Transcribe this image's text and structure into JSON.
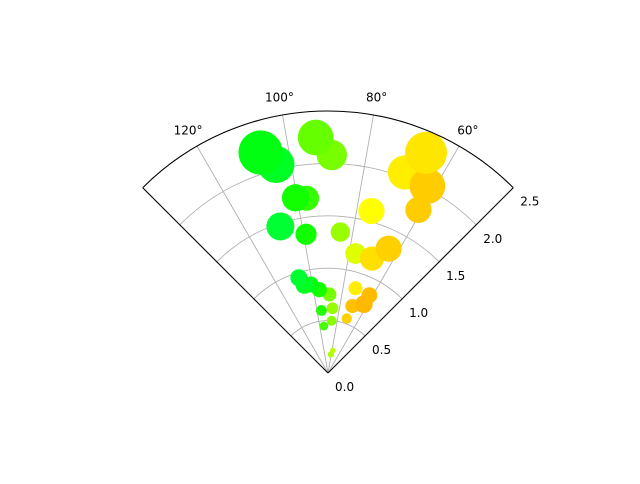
{
  "chart_data": {
    "type": "scatter",
    "projection": "polar",
    "title": "",
    "theta_unit": "degrees",
    "theta_range": [
      45,
      135
    ],
    "r_range": [
      0,
      2.5
    ],
    "grid": true,
    "legend": "none",
    "theta_ticks": [
      {
        "value": 60,
        "label": "60°"
      },
      {
        "value": 80,
        "label": "80°"
      },
      {
        "value": 100,
        "label": "100°"
      },
      {
        "value": 120,
        "label": "120°"
      }
    ],
    "r_ticks": [
      {
        "value": 0.0,
        "label": "0.0"
      },
      {
        "value": 0.5,
        "label": "0.5"
      },
      {
        "value": 1.0,
        "label": "1.0"
      },
      {
        "value": 1.5,
        "label": "1.5"
      },
      {
        "value": 2.0,
        "label": "2.0"
      },
      {
        "value": 2.5,
        "label": "2.5"
      }
    ],
    "point_encoding": {
      "theta": "angle in degrees",
      "r": "radius",
      "size": "marker area (relative)",
      "color": "hex fill"
    },
    "points": [
      {
        "theta": 81.0,
        "r": 0.18,
        "size": 20,
        "color": "#aaff00"
      },
      {
        "theta": 78.0,
        "r": 0.22,
        "size": 15,
        "color": "#b8ff00"
      },
      {
        "theta": 95.0,
        "r": 0.45,
        "size": 40,
        "color": "#44ff00"
      },
      {
        "theta": 86.0,
        "r": 0.5,
        "size": 50,
        "color": "#88ff00"
      },
      {
        "theta": 86.0,
        "r": 0.62,
        "size": 70,
        "color": "#99ff00"
      },
      {
        "theta": 96.0,
        "r": 0.6,
        "size": 60,
        "color": "#22ff00"
      },
      {
        "theta": 71.0,
        "r": 0.55,
        "size": 55,
        "color": "#ffd000"
      },
      {
        "theta": 70.0,
        "r": 0.68,
        "size": 100,
        "color": "#ffc000"
      },
      {
        "theta": 62.5,
        "r": 0.74,
        "size": 160,
        "color": "#ffb800"
      },
      {
        "theta": 89.0,
        "r": 0.75,
        "size": 100,
        "color": "#77ff00"
      },
      {
        "theta": 96.0,
        "r": 0.8,
        "size": 120,
        "color": "#11ff00"
      },
      {
        "theta": 101.0,
        "r": 0.86,
        "size": 130,
        "color": "#00ff11"
      },
      {
        "theta": 72.0,
        "r": 0.85,
        "size": 100,
        "color": "#ffee00"
      },
      {
        "theta": 105.0,
        "r": 0.87,
        "size": 160,
        "color": "#00ff22"
      },
      {
        "theta": 62.0,
        "r": 0.84,
        "size": 130,
        "color": "#ffbb00"
      },
      {
        "theta": 107.0,
        "r": 0.95,
        "size": 150,
        "color": "#00ff30"
      },
      {
        "theta": 77.0,
        "r": 1.17,
        "size": 220,
        "color": "#ddff00"
      },
      {
        "theta": 69.0,
        "r": 1.17,
        "size": 300,
        "color": "#ffe000"
      },
      {
        "theta": 85.0,
        "r": 1.35,
        "size": 190,
        "color": "#99ff00"
      },
      {
        "theta": 99.0,
        "r": 1.34,
        "size": 230,
        "color": "#11ff00"
      },
      {
        "theta": 64.0,
        "r": 1.32,
        "size": 350,
        "color": "#ffd000"
      },
      {
        "theta": 108.0,
        "r": 1.47,
        "size": 400,
        "color": "#00ff33"
      },
      {
        "theta": 75.0,
        "r": 1.6,
        "size": 350,
        "color": "#ffff00"
      },
      {
        "theta": 97.0,
        "r": 1.68,
        "size": 320,
        "color": "#33ff00"
      },
      {
        "theta": 100.5,
        "r": 1.7,
        "size": 380,
        "color": "#11ff00"
      },
      {
        "theta": 61.0,
        "r": 1.78,
        "size": 350,
        "color": "#ffcc00"
      },
      {
        "theta": 89.0,
        "r": 2.08,
        "size": 470,
        "color": "#77ff00"
      },
      {
        "theta": 69.0,
        "r": 2.05,
        "size": 600,
        "color": "#ffee00"
      },
      {
        "theta": 104.0,
        "r": 2.05,
        "size": 700,
        "color": "#00ff22"
      },
      {
        "theta": 62.0,
        "r": 2.02,
        "size": 650,
        "color": "#ffcc00"
      },
      {
        "theta": 107.0,
        "r": 2.2,
        "size": 1000,
        "color": "#00ff11"
      },
      {
        "theta": 93.0,
        "r": 2.25,
        "size": 650,
        "color": "#66ff00"
      },
      {
        "theta": 66.0,
        "r": 2.3,
        "size": 900,
        "color": "#ffe600"
      }
    ]
  }
}
